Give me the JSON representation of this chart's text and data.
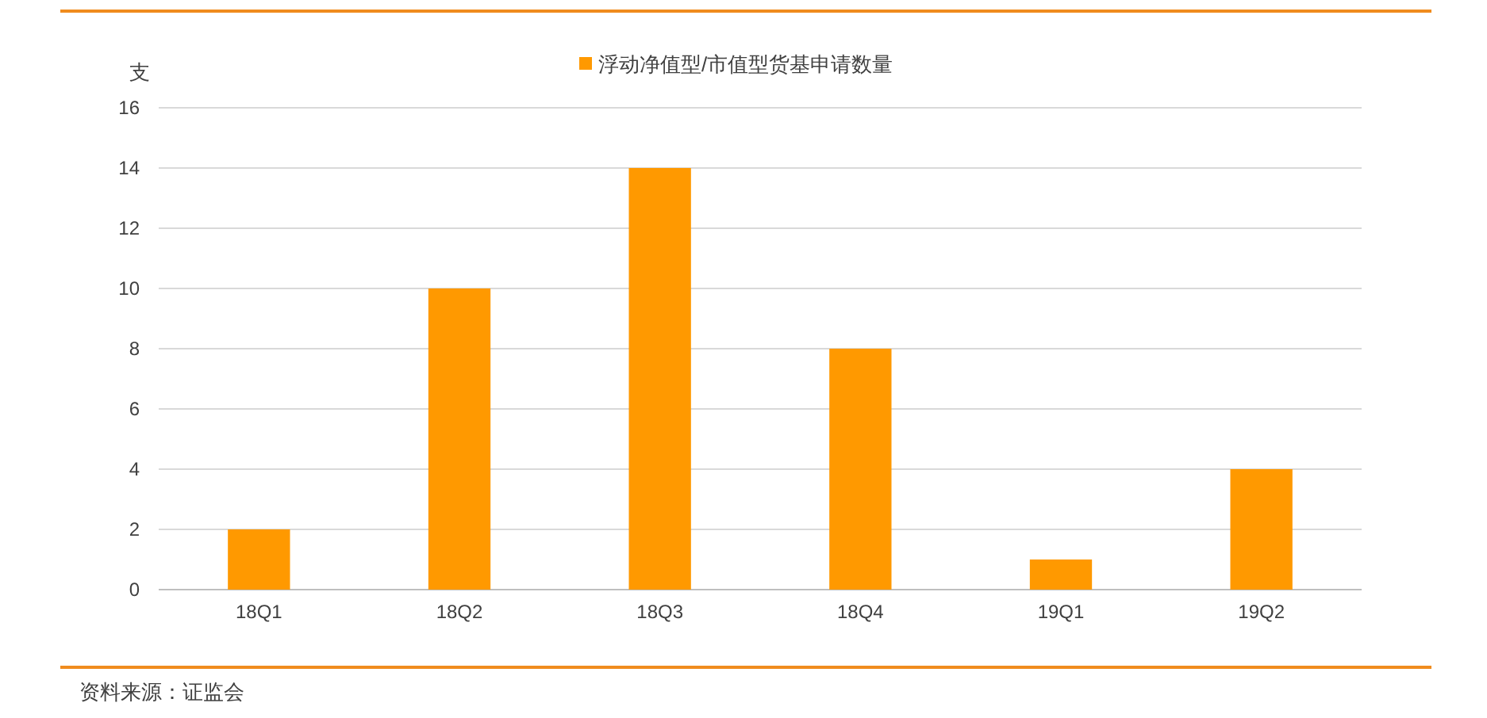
{
  "chart_data": {
    "type": "bar",
    "ylabel": "支",
    "categories": [
      "18Q1",
      "18Q2",
      "18Q3",
      "18Q4",
      "19Q1",
      "19Q2"
    ],
    "series": [
      {
        "name": "浮动净值型/市值型货基申请数量",
        "color": "#ff9900",
        "values": [
          2,
          10,
          14,
          8,
          1,
          4
        ]
      }
    ],
    "ylim": [
      0,
      16
    ],
    "yticks": [
      0,
      2,
      4,
      6,
      8,
      10,
      12,
      14,
      16
    ],
    "grid": "y",
    "legend": "top",
    "annotations": [
      "资料来源：证监会"
    ]
  }
}
